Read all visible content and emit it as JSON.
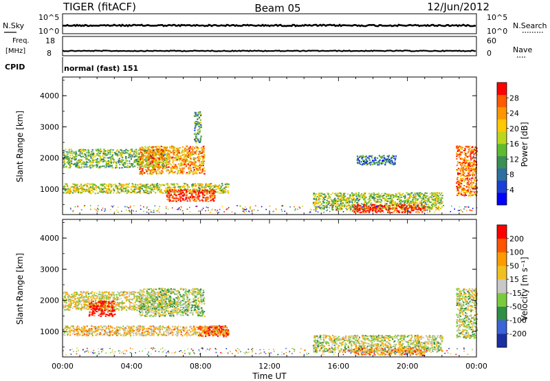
{
  "header": {
    "radar_label": "TIGER (fitACF)",
    "beam_label": "Beam 05",
    "date_label": "12/Jun/2012"
  },
  "strips": {
    "nsky": {
      "label": "N.Sky",
      "tick_labels": [
        "10^5",
        "10^0"
      ],
      "right_label": "N.Search",
      "right_tick_labels": [
        "10^5",
        "10^0"
      ]
    },
    "freq": {
      "label": "Freq.",
      "unit": "[MHz]",
      "tick_labels": [
        "18",
        "8"
      ],
      "right_label": "Nave",
      "right_tick_labels": [
        "60",
        "0"
      ]
    },
    "cpid": {
      "label": "CPID",
      "value": "normal (fast) 151"
    }
  },
  "chart_data": [
    {
      "type": "heatmap",
      "name": "power-panel",
      "ylabel": "Slant Range [km]",
      "ylim": [
        180,
        4600
      ],
      "yticks": [
        "1000",
        "2000",
        "3000",
        "4000"
      ],
      "colorbar": {
        "label": "Power [dB]",
        "ticks": [
          "4",
          "8",
          "12",
          "16",
          "20",
          "24",
          "28"
        ],
        "colors": [
          "#0000ff",
          "#1a3fd8",
          "#2e6fa0",
          "#3a8f55",
          "#5fba2e",
          "#bcd51e",
          "#ffc800",
          "#ff9600",
          "#ff5a00",
          "#ff0000"
        ]
      },
      "regions": [
        {
          "x": [
            0.0,
            9.6
          ],
          "y": [
            880,
            1200
          ],
          "level": 0.55
        },
        {
          "x": [
            6.0,
            8.8
          ],
          "y": [
            620,
            1000
          ],
          "level": 0.92
        },
        {
          "x": [
            0.0,
            6.0
          ],
          "y": [
            1700,
            2300
          ],
          "level": 0.45
        },
        {
          "x": [
            4.4,
            8.2
          ],
          "y": [
            1500,
            2400
          ],
          "level": 0.72
        },
        {
          "x": [
            7.6,
            8.0
          ],
          "y": [
            2500,
            3500
          ],
          "level": 0.4
        },
        {
          "x": [
            14.5,
            22.0
          ],
          "y": [
            350,
            900
          ],
          "level": 0.5
        },
        {
          "x": [
            16.8,
            21.0
          ],
          "y": [
            260,
            520
          ],
          "level": 0.95
        },
        {
          "x": [
            22.8,
            24.0
          ],
          "y": [
            800,
            2400
          ],
          "level": 0.8
        },
        {
          "x": [
            17.0,
            19.3
          ],
          "y": [
            1800,
            2100
          ],
          "level": 0.3
        }
      ]
    },
    {
      "type": "heatmap",
      "name": "velocity-panel",
      "xlabel": "Time UT",
      "ylabel": "Slant Range [km]",
      "ylim": [
        180,
        4600
      ],
      "yticks": [
        "1000",
        "2000",
        "3000",
        "4000"
      ],
      "xticks": [
        "00:00",
        "04:00",
        "08:00",
        "12:00",
        "16:00",
        "20:00",
        "00:00"
      ],
      "x_range_hours": [
        0,
        24
      ],
      "colorbar": {
        "label": "Velocity [m s⁻¹]",
        "ticks": [
          "200",
          "100",
          "50",
          "15",
          "-15",
          "-50",
          "-100",
          "-200"
        ],
        "colors": [
          "#1b2fa3",
          "#3a64d8",
          "#2f8f46",
          "#7acb3c",
          "#c8c8c8",
          "#f0c020",
          "#ff9a00",
          "#ff5400",
          "#ff0000"
        ]
      },
      "regions": [
        {
          "x": [
            0.0,
            9.6
          ],
          "y": [
            880,
            1200
          ],
          "level": 0.62
        },
        {
          "x": [
            7.8,
            9.6
          ],
          "y": [
            850,
            1200
          ],
          "level": 0.85
        },
        {
          "x": [
            0.0,
            6.0
          ],
          "y": [
            1700,
            2300
          ],
          "level": 0.55
        },
        {
          "x": [
            1.5,
            3.0
          ],
          "y": [
            1500,
            2000
          ],
          "level": 0.95
        },
        {
          "x": [
            4.4,
            8.2
          ],
          "y": [
            1500,
            2400
          ],
          "level": 0.45
        },
        {
          "x": [
            14.5,
            22.0
          ],
          "y": [
            350,
            900
          ],
          "level": 0.5
        },
        {
          "x": [
            16.8,
            21.0
          ],
          "y": [
            250,
            500
          ],
          "level": 0.7
        },
        {
          "x": [
            22.8,
            24.0
          ],
          "y": [
            800,
            2400
          ],
          "level": 0.48
        }
      ]
    }
  ]
}
